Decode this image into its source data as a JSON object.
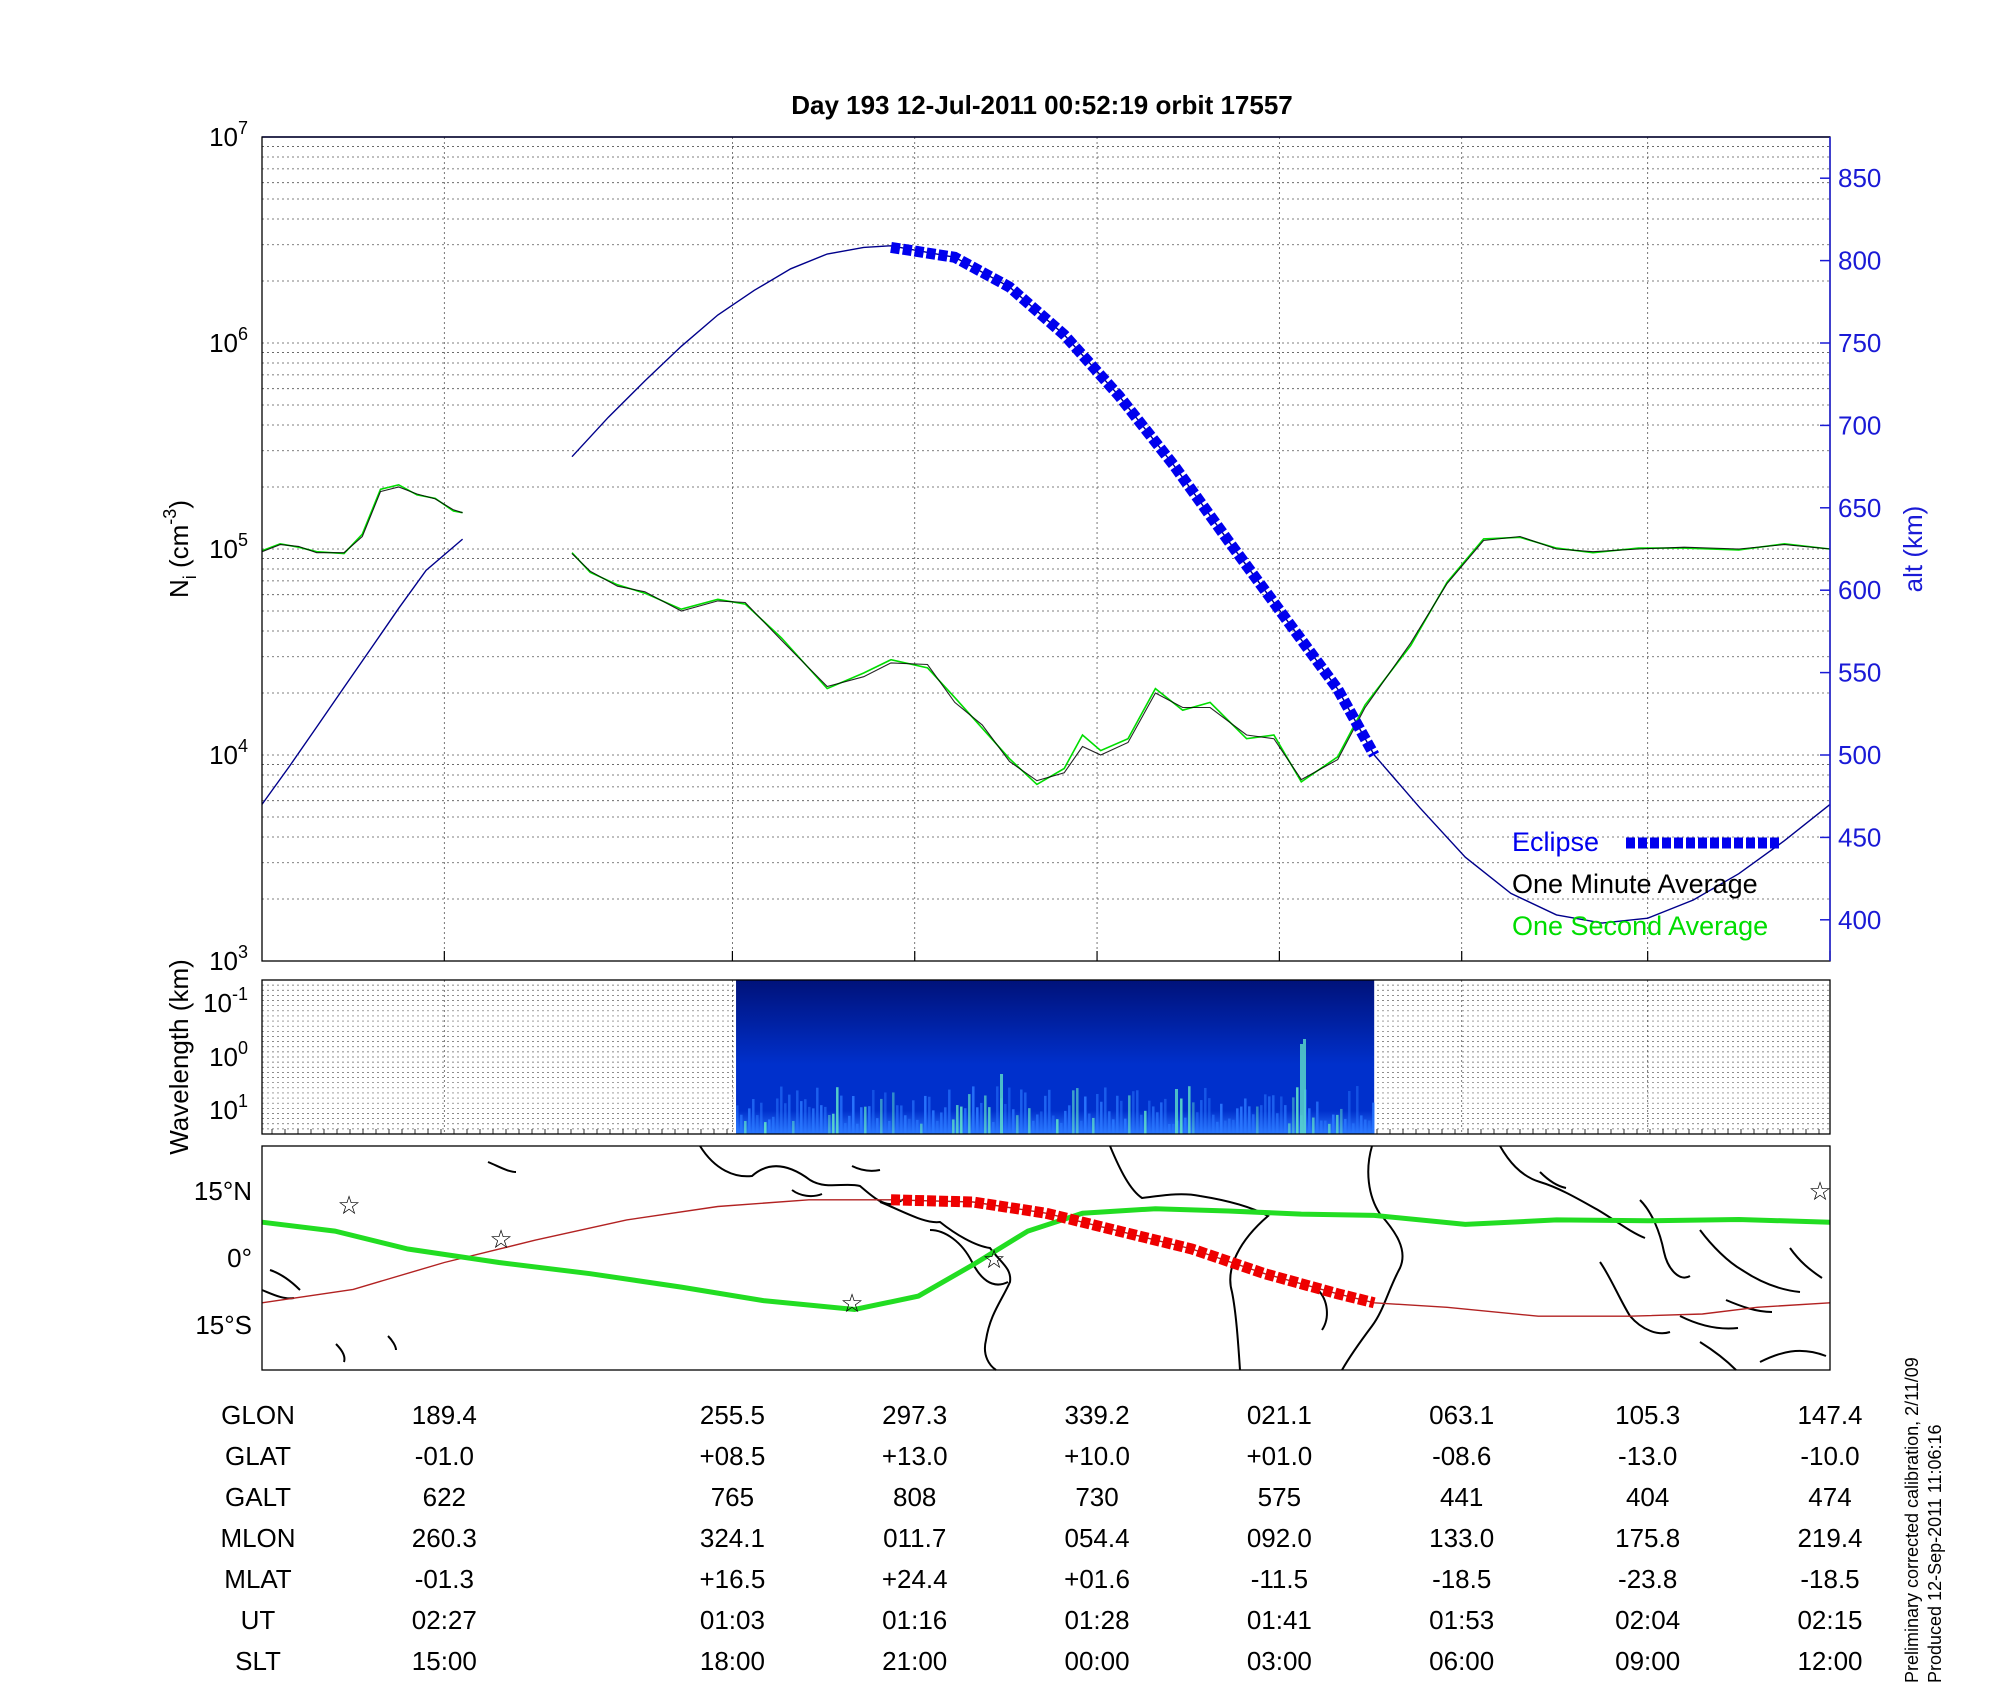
{
  "title": "Day 193  12-Jul-2011 00:52:19   orbit 17557",
  "chart_data": [
    {
      "type": "line",
      "panel": "ion-density",
      "ylabel": "N_i (cm^-3)",
      "ylabel_main": "N",
      "ylabel_sub": "i",
      "ylabel_unit": " (cm",
      "ylabel_exp": "-3",
      "ylabel_close": ")",
      "y_scale": "log",
      "ylim": [
        1000,
        10000000
      ],
      "y_ticks": [
        {
          "v": 3,
          "base": "10",
          "exp": "3"
        },
        {
          "v": 4,
          "base": "10",
          "exp": "4"
        },
        {
          "v": 5,
          "base": "10",
          "exp": "5"
        },
        {
          "v": 6,
          "base": "10",
          "exp": "6"
        },
        {
          "v": 7,
          "base": "10",
          "exp": "7"
        }
      ],
      "y2label": "alt (km)",
      "y2lim": [
        375,
        875
      ],
      "y2_ticks": [
        "400",
        "450",
        "500",
        "550",
        "600",
        "650",
        "700",
        "750",
        "800",
        "850"
      ],
      "y2_tick_values": [
        400,
        450,
        500,
        550,
        600,
        650,
        700,
        750,
        800,
        850
      ],
      "x_range_index": [
        0,
        8.6
      ],
      "x_tick_index": [
        1,
        2.58,
        3.58,
        4.58,
        5.58,
        6.58,
        7.6,
        8.6
      ],
      "grid": true,
      "legend_position": "bottom-right",
      "series": [
        {
          "name": "Eclipse",
          "color": "#0000ee",
          "style": "dashed-thick",
          "x": [
            3.45,
            3.8,
            4.1,
            4.4,
            4.7,
            5.0,
            5.3,
            5.6,
            5.9,
            6.1
          ],
          "y": [
            808,
            802,
            784,
            755,
            718,
            676,
            630,
            585,
            540,
            500
          ]
        },
        {
          "name": "One Minute Average",
          "color": "#000000",
          "x": [
            0,
            0.1,
            0.2,
            0.3,
            0.45,
            0.55,
            0.65,
            0.75,
            0.85,
            0.95,
            1.05,
            1.1,
            1.7,
            1.8,
            1.95,
            2.1,
            2.3,
            2.5,
            2.65,
            2.85,
            3.1,
            3.3,
            3.45,
            3.65,
            3.8,
            3.95,
            4.1,
            4.25,
            4.4,
            4.5,
            4.6,
            4.75,
            4.9,
            5.05,
            5.2,
            5.4,
            5.55,
            5.7,
            5.9,
            6.05,
            6.3,
            6.5,
            6.7,
            6.9,
            7.1,
            7.3,
            7.55,
            7.8,
            8.1,
            8.35,
            8.6
          ],
          "y": [
            97000,
            105000,
            103000,
            96000,
            96000,
            115000,
            190000,
            200000,
            185000,
            175000,
            155000,
            150000,
            95000,
            78000,
            66000,
            62000,
            50000,
            56000,
            55000,
            36000,
            21500,
            24000,
            28000,
            27500,
            18000,
            14000,
            9300,
            7500,
            8200,
            11000,
            10000,
            11500,
            20000,
            17000,
            17000,
            12500,
            12000,
            7600,
            9500,
            17000,
            35000,
            68000,
            110000,
            115000,
            100000,
            97000,
            100000,
            102000,
            100000,
            105000,
            100000
          ]
        },
        {
          "name": "One Second Average",
          "color": "#00dd00",
          "x": [
            0,
            0.1,
            0.2,
            0.3,
            0.45,
            0.55,
            0.65,
            0.75,
            0.85,
            0.95,
            1.05,
            1.1,
            1.7,
            1.8,
            1.95,
            2.1,
            2.3,
            2.5,
            2.65,
            2.85,
            3.1,
            3.3,
            3.45,
            3.65,
            3.8,
            3.95,
            4.1,
            4.25,
            4.4,
            4.5,
            4.6,
            4.75,
            4.9,
            5.05,
            5.2,
            5.4,
            5.55,
            5.7,
            5.9,
            6.05,
            6.3,
            6.5,
            6.7,
            6.9,
            7.1,
            7.3,
            7.55,
            7.8,
            8.1,
            8.35,
            8.6
          ],
          "y": [
            98000,
            106000,
            102000,
            97000,
            95000,
            118000,
            195000,
            205000,
            183000,
            176000,
            153000,
            150000,
            96000,
            77000,
            67000,
            61000,
            51000,
            57000,
            54000,
            37000,
            21000,
            25000,
            29000,
            26500,
            19000,
            13500,
            9600,
            7200,
            8600,
            12500,
            10500,
            12000,
            21000,
            16500,
            18000,
            12000,
            12500,
            7400,
            9800,
            17500,
            34000,
            69000,
            112000,
            114000,
            101000,
            96000,
            101000,
            101000,
            99000,
            106000,
            100000
          ]
        },
        {
          "name": "",
          "color": "#00008b",
          "axis": "alt",
          "x": [
            0,
            0.15,
            0.3,
            0.45,
            0.6,
            0.75,
            0.9,
            1.1,
            1.7,
            1.9,
            2.1,
            2.3,
            2.5,
            2.7,
            2.9,
            3.1,
            3.3,
            3.45,
            3.8,
            4.1,
            4.4,
            4.7,
            5.0,
            5.3,
            5.6,
            5.9,
            6.1,
            6.35,
            6.6,
            6.85,
            7.1,
            7.35,
            7.6,
            7.85,
            8.1,
            8.35,
            8.6
          ],
          "y": [
            470,
            493,
            517,
            541,
            565,
            589,
            612,
            631,
            681,
            705,
            727,
            748,
            767,
            782,
            795,
            804,
            808,
            809,
            802,
            784,
            755,
            718,
            676,
            630,
            585,
            540,
            500,
            468,
            438,
            416,
            403,
            398,
            401,
            412,
            428,
            448,
            470
          ]
        }
      ]
    },
    {
      "type": "heatmap",
      "panel": "spectrogram",
      "ylabel": "Wavelength (km)",
      "y_ticks": [
        {
          "base": "10",
          "exp": "-1"
        },
        {
          "base": "10",
          "exp": "0"
        },
        {
          "base": "10",
          "exp": "1"
        }
      ],
      "x_extent_index": [
        2.6,
        6.1
      ],
      "colors": [
        "#00127a",
        "#0030cc",
        "#2a78ff",
        "#5ee0c8"
      ]
    },
    {
      "type": "line",
      "panel": "map",
      "y_ticks": [
        "15°N",
        "0°",
        "15°S"
      ],
      "y_tick_values": [
        15,
        0,
        -15
      ],
      "ylim": [
        -25,
        25
      ],
      "series": [
        {
          "name": "orbit track",
          "color": "#b22222",
          "x": [
            0,
            0.5,
            1.0,
            1.5,
            2.0,
            2.5,
            3.0,
            3.45,
            3.9,
            4.3,
            4.7,
            5.1,
            5.5,
            5.9,
            6.1,
            6.5,
            7.0,
            7.5,
            7.9,
            8.2,
            8.6
          ],
          "y": [
            -10,
            -7,
            -1,
            4,
            8.5,
            11.5,
            13,
            13,
            12.5,
            10,
            6,
            2,
            -3.5,
            -8,
            -10,
            -11,
            -13,
            -13,
            -12.5,
            -11,
            -10
          ]
        },
        {
          "name": "eclipse track",
          "color": "#ee0000",
          "style": "dashed-thick",
          "x": [
            3.45,
            3.9,
            4.3,
            4.7,
            5.1,
            5.5,
            5.9,
            6.1
          ],
          "y": [
            13,
            12.5,
            10,
            6,
            2,
            -3.5,
            -8,
            -10
          ]
        },
        {
          "name": "magnetic equator",
          "color": "#22dd22",
          "x": [
            0,
            0.4,
            0.8,
            1.3,
            1.8,
            2.3,
            2.75,
            3.25,
            3.6,
            3.9,
            4.2,
            4.5,
            4.9,
            5.3,
            5.7,
            6.1,
            6.6,
            7.1,
            7.6,
            8.1,
            8.6
          ],
          "y": [
            8,
            6,
            2,
            -1,
            -3.5,
            -6.5,
            -9.5,
            -11.5,
            -8.5,
            -1.5,
            6,
            10,
            11,
            10.5,
            9.8,
            9.5,
            7.5,
            8.5,
            8.3,
            8.6,
            8.0
          ]
        }
      ]
    }
  ],
  "table": {
    "rows": [
      {
        "label": "GLON",
        "values": [
          "189.4",
          "255.5",
          "297.3",
          "339.2",
          "021.1",
          "063.1",
          "105.3",
          "147.4"
        ]
      },
      {
        "label": "GLAT",
        "values": [
          "-01.0",
          "+08.5",
          "+13.0",
          "+10.0",
          "+01.0",
          "-08.6",
          "-13.0",
          "-10.0"
        ]
      },
      {
        "label": "GALT",
        "values": [
          "622",
          "765",
          "808",
          "730",
          "575",
          "441",
          "404",
          "474"
        ]
      },
      {
        "label": "MLON",
        "values": [
          "260.3",
          "324.1",
          "011.7",
          "054.4",
          "092.0",
          "133.0",
          "175.8",
          "219.4"
        ]
      },
      {
        "label": "MLAT",
        "values": [
          "-01.3",
          "+16.5",
          "+24.4",
          "+01.6",
          "-11.5",
          "-18.5",
          "-23.8",
          "-18.5"
        ]
      },
      {
        "label": "UT",
        "values": [
          "02:27",
          "01:03",
          "01:16",
          "01:28",
          "01:41",
          "01:53",
          "02:04",
          "02:15"
        ]
      },
      {
        "label": "SLT",
        "values": [
          "15:00",
          "18:00",
          "21:00",
          "00:00",
          "03:00",
          "06:00",
          "09:00",
          "12:00"
        ]
      }
    ]
  },
  "footer": {
    "line1": "Preliminary corrected calibration, 2/11/09",
    "line2": "Produced 12-Sep-2011 11:06:16"
  },
  "colors": {
    "altitude_axis": "#1a1ad6",
    "eclipse": "#0000ee",
    "minute_avg": "#000000",
    "second_avg": "#00dd00"
  }
}
